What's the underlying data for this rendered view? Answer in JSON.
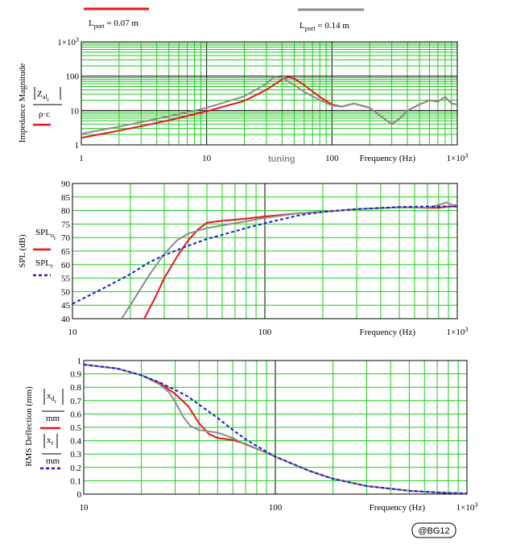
{
  "legend": {
    "red_label": "L",
    "red_sub": "port",
    "red_value": " = 0.07 m",
    "gray_label": "L",
    "gray_sub": "port",
    "gray_value": " = 0.14 m"
  },
  "badge": "@BG12",
  "colors": {
    "red": "#e8141e",
    "gray": "#8c8c8c",
    "blue": "#1a1ad8",
    "grid": "#19cd19"
  },
  "chart_data": [
    {
      "type": "line",
      "title": "",
      "ylabel": "Impedance Magnitude",
      "xlabel": "Frequency (Hz)",
      "x_scale": "log",
      "y_scale": "log",
      "xlim": [
        1,
        1000
      ],
      "ylim": [
        1,
        1000
      ],
      "x_ticks": [
        "1",
        "10",
        "100",
        "1×10³"
      ],
      "y_ticks": [
        "1",
        "10",
        "100",
        "1×10³"
      ],
      "annotation": "tuning",
      "legend_items": [
        {
          "text": "|Z_al_r| / ρ·c",
          "color": "#e8141e"
        }
      ],
      "series": [
        {
          "name": "L_port = 0.07 m",
          "color": "#e8141e",
          "x": [
            1,
            2,
            3,
            5,
            10,
            20,
            30,
            40,
            45,
            50,
            60,
            80,
            100,
            120,
            150,
            200,
            250,
            300,
            350,
            400,
            500,
            600,
            700,
            800,
            900,
            1000
          ],
          "y": [
            1.6,
            2.6,
            3.5,
            5.2,
            9.5,
            19,
            40,
            80,
            95,
            85,
            55,
            25,
            15,
            13,
            16,
            12,
            6.5,
            4,
            6,
            10,
            15,
            20,
            18,
            25,
            16,
            15
          ]
        },
        {
          "name": "L_port = 0.14 m",
          "color": "#8c8c8c",
          "x": [
            1,
            2,
            3,
            5,
            10,
            20,
            30,
            35,
            40,
            50,
            60,
            80,
            100,
            120,
            150,
            200,
            250,
            300,
            350,
            400,
            500,
            600,
            700,
            800,
            900,
            1000
          ],
          "y": [
            2.1,
            3.4,
            4.6,
            6.8,
            12,
            26,
            60,
            100,
            90,
            55,
            35,
            20,
            14,
            13,
            16,
            12,
            6.5,
            4,
            6,
            10,
            15,
            20,
            18,
            25,
            16,
            15
          ]
        }
      ]
    },
    {
      "type": "line",
      "title": "",
      "ylabel": "SPL (dB)",
      "xlabel": "Frequency (Hz)",
      "x_scale": "log",
      "xlim": [
        10,
        1000
      ],
      "ylim": [
        40,
        90
      ],
      "x_ticks": [
        "10",
        "100",
        "1×10³"
      ],
      "y_ticks": [
        "40",
        "45",
        "50",
        "55",
        "60",
        "65",
        "70",
        "75",
        "80",
        "85",
        "90"
      ],
      "legend_items": [
        {
          "text": "SPL_o_r",
          "color": "#e8141e",
          "style": "solid"
        },
        {
          "text": "SPL_r",
          "color": "#1a1ad8",
          "style": "dashed"
        }
      ],
      "series": [
        {
          "name": "SPL_o_r (L_port = 0.07 m)",
          "color": "#e8141e",
          "style": "solid",
          "x": [
            23.6,
            27,
            30,
            35,
            40,
            45,
            50,
            60,
            80,
            100,
            150,
            200,
            300,
            500,
            700,
            800,
            900,
            1000
          ],
          "y": [
            40,
            48,
            55,
            63,
            69,
            73,
            75.5,
            76.2,
            77,
            77.8,
            79,
            79.5,
            80.5,
            81.2,
            81,
            81,
            81.5,
            81.5
          ]
        },
        {
          "name": "SPL_o_r (L_port = 0.14 m)",
          "color": "#8c8c8c",
          "style": "solid",
          "x": [
            18,
            20,
            25,
            30,
            35,
            40,
            50,
            60,
            80,
            100,
            150,
            200,
            300,
            500,
            700,
            800,
            880,
            950,
            1000
          ],
          "y": [
            40,
            45,
            56,
            64,
            69,
            71.5,
            73.5,
            74.5,
            76,
            77.3,
            79,
            79.5,
            80.5,
            81.2,
            81,
            82,
            83,
            82,
            82
          ]
        },
        {
          "name": "SPL_r",
          "color": "#1a1ad8",
          "style": "dashed",
          "x": [
            10,
            15,
            20,
            25,
            30,
            40,
            50,
            60,
            80,
            100,
            150,
            200,
            300,
            500,
            700,
            1000
          ],
          "y": [
            45.5,
            51.8,
            56.5,
            60.8,
            63.5,
            67,
            69.5,
            71,
            73.5,
            75.3,
            78.2,
            79.5,
            80.5,
            81.3,
            81.5,
            81.5
          ]
        }
      ]
    },
    {
      "type": "line",
      "title": "",
      "ylabel": "RMS Deflection (mm)",
      "xlabel": "Frequency (Hz)",
      "x_scale": "log",
      "xlim": [
        10,
        1000
      ],
      "ylim": [
        0,
        1
      ],
      "x_ticks": [
        "10",
        "100",
        "1×10³"
      ],
      "y_ticks": [
        "0",
        "0.1",
        "0.2",
        "0.3",
        "0.4",
        "0.5",
        "0.6",
        "0.7",
        "0.8",
        "0.9",
        "1"
      ],
      "legend_items": [
        {
          "text": "|x_d_r| / mm",
          "color": "#e8141e",
          "style": "solid"
        },
        {
          "text": "|x_r| / mm",
          "color": "#1a1ad8",
          "style": "dashed"
        }
      ],
      "series": [
        {
          "name": "x_d_r (L_port = 0.07 m)",
          "color": "#e8141e",
          "style": "solid",
          "x": [
            10,
            15,
            20,
            25,
            30,
            35,
            40,
            45,
            50,
            60,
            70,
            80,
            100,
            150,
            200,
            300,
            500,
            700,
            1000
          ],
          "y": [
            0.97,
            0.94,
            0.89,
            0.83,
            0.75,
            0.66,
            0.53,
            0.45,
            0.42,
            0.405,
            0.375,
            0.34,
            0.28,
            0.175,
            0.115,
            0.06,
            0.025,
            0.012,
            0.005
          ]
        },
        {
          "name": "x_d_r (L_port = 0.14 m)",
          "color": "#8c8c8c",
          "style": "solid",
          "x": [
            10,
            15,
            20,
            25,
            28,
            30,
            33,
            36,
            40,
            45,
            50,
            60,
            70,
            80,
            100,
            150,
            200,
            300,
            500,
            700,
            1000
          ],
          "y": [
            0.97,
            0.94,
            0.89,
            0.82,
            0.76,
            0.69,
            0.58,
            0.51,
            0.48,
            0.47,
            0.46,
            0.42,
            0.37,
            0.34,
            0.28,
            0.175,
            0.115,
            0.06,
            0.025,
            0.012,
            0.005
          ]
        },
        {
          "name": "x_r",
          "color": "#1a1ad8",
          "style": "dashed",
          "x": [
            10,
            15,
            20,
            25,
            30,
            35,
            40,
            50,
            60,
            70,
            80,
            100,
            150,
            200,
            300,
            500,
            700,
            1000
          ],
          "y": [
            0.97,
            0.94,
            0.89,
            0.835,
            0.78,
            0.73,
            0.67,
            0.57,
            0.48,
            0.41,
            0.36,
            0.28,
            0.175,
            0.115,
            0.06,
            0.025,
            0.012,
            0.005
          ]
        }
      ]
    }
  ]
}
